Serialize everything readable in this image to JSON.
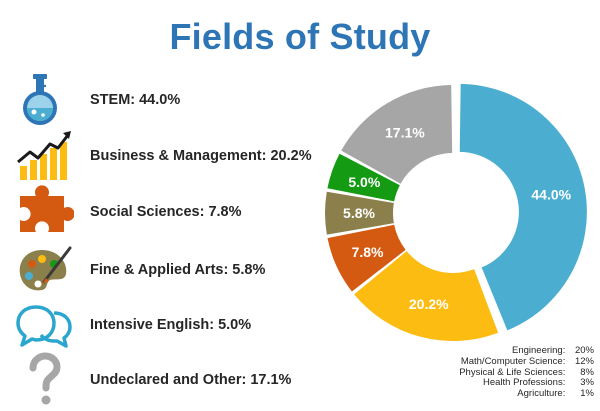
{
  "title": "Fields of Study",
  "colors": {
    "title": "#2e75b6",
    "stem": "#4baed1",
    "business": "#fdbc12",
    "social": "#d35a10",
    "arts": "#8b7f4b",
    "english": "#159a13",
    "undeclared": "#a6a6a6"
  },
  "legend": [
    {
      "icon": "flask-icon",
      "label": "STEM:",
      "value": "44.0%"
    },
    {
      "icon": "rising-bar-chart-icon",
      "label": "Business & Management:",
      "value": "20.2%"
    },
    {
      "icon": "puzzle-piece-icon",
      "label": "Social Sciences:",
      "value": "7.8%"
    },
    {
      "icon": "paint-palette-icon",
      "label": "Fine & Applied Arts:",
      "value": "5.8%"
    },
    {
      "icon": "speech-bubbles-icon",
      "label": "Intensive English:",
      "value": "5.0%"
    },
    {
      "icon": "question-mark-icon",
      "label": "Undeclared and Other:",
      "value": "17.1%"
    }
  ],
  "chart_data": {
    "type": "pie",
    "variant": "donut",
    "categories": [
      "STEM",
      "Business & Management",
      "Social Sciences",
      "Fine & Applied Arts",
      "Intensive English",
      "Undeclared and Other"
    ],
    "values": [
      44.0,
      20.2,
      7.8,
      5.8,
      5.0,
      17.1
    ],
    "labels": [
      "44.0%",
      "20.2%",
      "7.8%",
      "5.8%",
      "5.0%",
      "17.1%"
    ],
    "colors": [
      "#4baed1",
      "#fdbc12",
      "#d35a10",
      "#8b7f4b",
      "#159a13",
      "#a6a6a6"
    ],
    "label_colors": [
      "#ffffff",
      "#ffffff",
      "#ffffff",
      "#ffffff",
      "#ffffff",
      "#ffffff"
    ],
    "exploded_slice": "STEM",
    "title": "Fields of Study"
  },
  "stem_breakdown": [
    {
      "label": "Engineering:",
      "value": "20%"
    },
    {
      "label": "Math/Computer Science:",
      "value": "12%"
    },
    {
      "label": "Physical & Life Sciences:",
      "value": "8%"
    },
    {
      "label": "Health Professions:",
      "value": "3%"
    },
    {
      "label": "Agriculture:",
      "value": "1%"
    }
  ]
}
